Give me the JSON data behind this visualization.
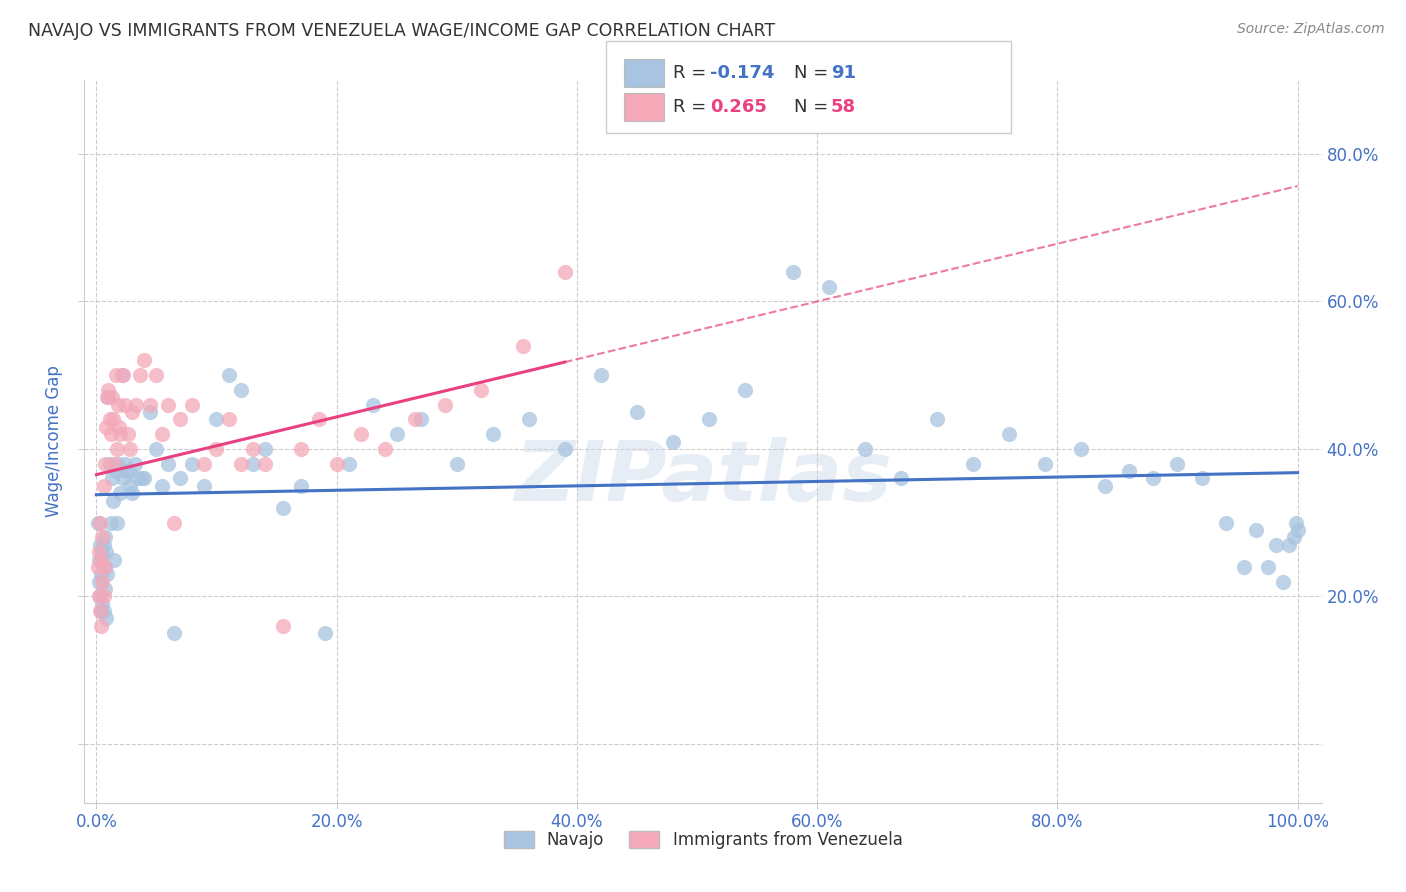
{
  "title": "NAVAJO VS IMMIGRANTS FROM VENEZUELA WAGE/INCOME GAP CORRELATION CHART",
  "source": "Source: ZipAtlas.com",
  "ylabel": "Wage/Income Gap",
  "navajo_color": "#a8c4e0",
  "venezuela_color": "#f4a8b8",
  "navajo_line_color": "#4472c4",
  "venezuela_line_color": "#e84080",
  "navajo_R": -0.174,
  "navajo_N": 91,
  "venezuela_R": 0.265,
  "venezuela_N": 58,
  "watermark": "ZIPatlas",
  "legend_navajo_label": "Navajo",
  "legend_venezuela_label": "Immigrants from Venezuela",
  "xlim": [
    -0.01,
    1.02
  ],
  "ylim": [
    -0.08,
    0.9
  ],
  "background_color": "#ffffff",
  "grid_color": "#cccccc",
  "title_color": "#333333",
  "axis_label_color": "#4472c4",
  "navajo_x": [
    0.001,
    0.002,
    0.002,
    0.003,
    0.003,
    0.004,
    0.004,
    0.005,
    0.005,
    0.006,
    0.006,
    0.007,
    0.007,
    0.007,
    0.008,
    0.008,
    0.009,
    0.01,
    0.011,
    0.012,
    0.013,
    0.014,
    0.015,
    0.016,
    0.017,
    0.018,
    0.02,
    0.021,
    0.022,
    0.024,
    0.025,
    0.027,
    0.028,
    0.03,
    0.032,
    0.035,
    0.038,
    0.04,
    0.045,
    0.05,
    0.055,
    0.06,
    0.065,
    0.07,
    0.08,
    0.09,
    0.1,
    0.11,
    0.12,
    0.13,
    0.14,
    0.155,
    0.17,
    0.19,
    0.21,
    0.23,
    0.25,
    0.27,
    0.3,
    0.33,
    0.36,
    0.39,
    0.42,
    0.45,
    0.48,
    0.51,
    0.54,
    0.58,
    0.61,
    0.64,
    0.67,
    0.7,
    0.73,
    0.76,
    0.79,
    0.82,
    0.84,
    0.86,
    0.88,
    0.9,
    0.92,
    0.94,
    0.955,
    0.965,
    0.975,
    0.982,
    0.988,
    0.993,
    0.997,
    0.999,
    1.0
  ],
  "navajo_y": [
    0.3,
    0.25,
    0.22,
    0.27,
    0.2,
    0.23,
    0.18,
    0.26,
    0.19,
    0.27,
    0.18,
    0.28,
    0.24,
    0.21,
    0.26,
    0.17,
    0.23,
    0.47,
    0.38,
    0.3,
    0.36,
    0.33,
    0.25,
    0.37,
    0.3,
    0.38,
    0.34,
    0.5,
    0.36,
    0.38,
    0.37,
    0.37,
    0.35,
    0.34,
    0.38,
    0.36,
    0.36,
    0.36,
    0.45,
    0.4,
    0.35,
    0.38,
    0.15,
    0.36,
    0.38,
    0.35,
    0.44,
    0.5,
    0.48,
    0.38,
    0.4,
    0.32,
    0.35,
    0.15,
    0.38,
    0.46,
    0.42,
    0.44,
    0.38,
    0.42,
    0.44,
    0.4,
    0.5,
    0.45,
    0.41,
    0.44,
    0.48,
    0.64,
    0.62,
    0.4,
    0.36,
    0.44,
    0.38,
    0.42,
    0.38,
    0.4,
    0.35,
    0.37,
    0.36,
    0.38,
    0.36,
    0.3,
    0.24,
    0.29,
    0.24,
    0.27,
    0.22,
    0.27,
    0.28,
    0.3,
    0.29
  ],
  "venezuela_x": [
    0.001,
    0.002,
    0.002,
    0.003,
    0.003,
    0.004,
    0.004,
    0.005,
    0.005,
    0.006,
    0.006,
    0.007,
    0.007,
    0.008,
    0.009,
    0.01,
    0.011,
    0.012,
    0.013,
    0.014,
    0.015,
    0.016,
    0.017,
    0.018,
    0.019,
    0.02,
    0.022,
    0.024,
    0.026,
    0.028,
    0.03,
    0.033,
    0.036,
    0.04,
    0.045,
    0.05,
    0.055,
    0.06,
    0.065,
    0.07,
    0.08,
    0.09,
    0.1,
    0.11,
    0.12,
    0.13,
    0.14,
    0.155,
    0.17,
    0.185,
    0.2,
    0.22,
    0.24,
    0.265,
    0.29,
    0.32,
    0.355,
    0.39
  ],
  "venezuela_y": [
    0.24,
    0.2,
    0.26,
    0.18,
    0.3,
    0.16,
    0.25,
    0.22,
    0.28,
    0.2,
    0.35,
    0.24,
    0.38,
    0.43,
    0.47,
    0.48,
    0.44,
    0.42,
    0.47,
    0.44,
    0.38,
    0.5,
    0.4,
    0.46,
    0.43,
    0.42,
    0.5,
    0.46,
    0.42,
    0.4,
    0.45,
    0.46,
    0.5,
    0.52,
    0.46,
    0.5,
    0.42,
    0.46,
    0.3,
    0.44,
    0.46,
    0.38,
    0.4,
    0.44,
    0.38,
    0.4,
    0.38,
    0.16,
    0.4,
    0.44,
    0.38,
    0.42,
    0.4,
    0.44,
    0.46,
    0.48,
    0.54,
    0.64
  ]
}
